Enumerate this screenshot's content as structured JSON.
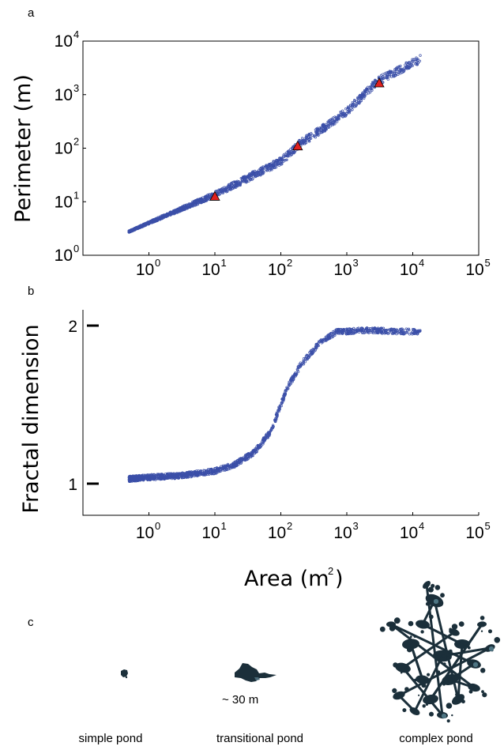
{
  "panels": {
    "a": "a",
    "b": "b",
    "c": "c"
  },
  "colors": {
    "points": "#3b4fa8",
    "markers": "#e02020",
    "pond": "#1b2f3a",
    "axis": "#000000"
  },
  "chart_data": [
    {
      "panel": "a",
      "type": "scatter",
      "title": "",
      "xlabel": "",
      "ylabel": "Perimeter  (m)",
      "xscale": "log",
      "yscale": "log",
      "xlim": [
        0.1,
        100000
      ],
      "ylim": [
        1,
        10000
      ],
      "x_ticks": [
        {
          "base": "10",
          "exp": "0"
        },
        {
          "base": "10",
          "exp": "1"
        },
        {
          "base": "10",
          "exp": "2"
        },
        {
          "base": "10",
          "exp": "3"
        },
        {
          "base": "10",
          "exp": "4"
        },
        {
          "base": "10",
          "exp": "5"
        }
      ],
      "y_ticks": [
        {
          "base": "10",
          "exp": "0"
        },
        {
          "base": "10",
          "exp": "1"
        },
        {
          "base": "10",
          "exp": "2"
        },
        {
          "base": "10",
          "exp": "3"
        },
        {
          "base": "10",
          "exp": "4"
        }
      ],
      "grid": false,
      "series_outline": [
        [
          0.5,
          2.8
        ],
        [
          1,
          4.0
        ],
        [
          3,
          6.9
        ],
        [
          10,
          12.6
        ],
        [
          30,
          24
        ],
        [
          100,
          50
        ],
        [
          200,
          110
        ],
        [
          500,
          230
        ],
        [
          1000,
          430
        ],
        [
          3000,
          1600
        ],
        [
          5000,
          2200
        ],
        [
          13000,
          4000
        ]
      ],
      "highlighted_points": [
        [
          10,
          12.6
        ],
        [
          180,
          110
        ],
        [
          3100,
          1650
        ]
      ]
    },
    {
      "panel": "b",
      "type": "scatter",
      "title": "",
      "xlabel": "Area  (m2)",
      "xlabel_text": "Area  (m",
      "xlabel_sup": "2",
      "xlabel_close": ")",
      "ylabel": "Fractal dimension",
      "xscale": "log",
      "xlim": [
        0.1,
        100000
      ],
      "ylim": [
        0.8,
        2.1
      ],
      "x_ticks": [
        {
          "base": "10",
          "exp": "0"
        },
        {
          "base": "10",
          "exp": "1"
        },
        {
          "base": "10",
          "exp": "2"
        },
        {
          "base": "10",
          "exp": "3"
        },
        {
          "base": "10",
          "exp": "4"
        },
        {
          "base": "10",
          "exp": "5"
        }
      ],
      "y_ticks": [
        "1",
        "2"
      ],
      "grid": false,
      "series_outline": [
        [
          0.5,
          1.03
        ],
        [
          1,
          1.04
        ],
        [
          3,
          1.05
        ],
        [
          10,
          1.08
        ],
        [
          20,
          1.12
        ],
        [
          40,
          1.2
        ],
        [
          70,
          1.33
        ],
        [
          100,
          1.5
        ],
        [
          130,
          1.62
        ],
        [
          200,
          1.75
        ],
        [
          400,
          1.9
        ],
        [
          700,
          1.96
        ],
        [
          2000,
          1.97
        ],
        [
          13000,
          1.96
        ]
      ]
    }
  ],
  "ponds": {
    "scale_label": "~ 30 m",
    "labels": [
      "simple pond",
      "transitional pond",
      "complex pond"
    ]
  }
}
